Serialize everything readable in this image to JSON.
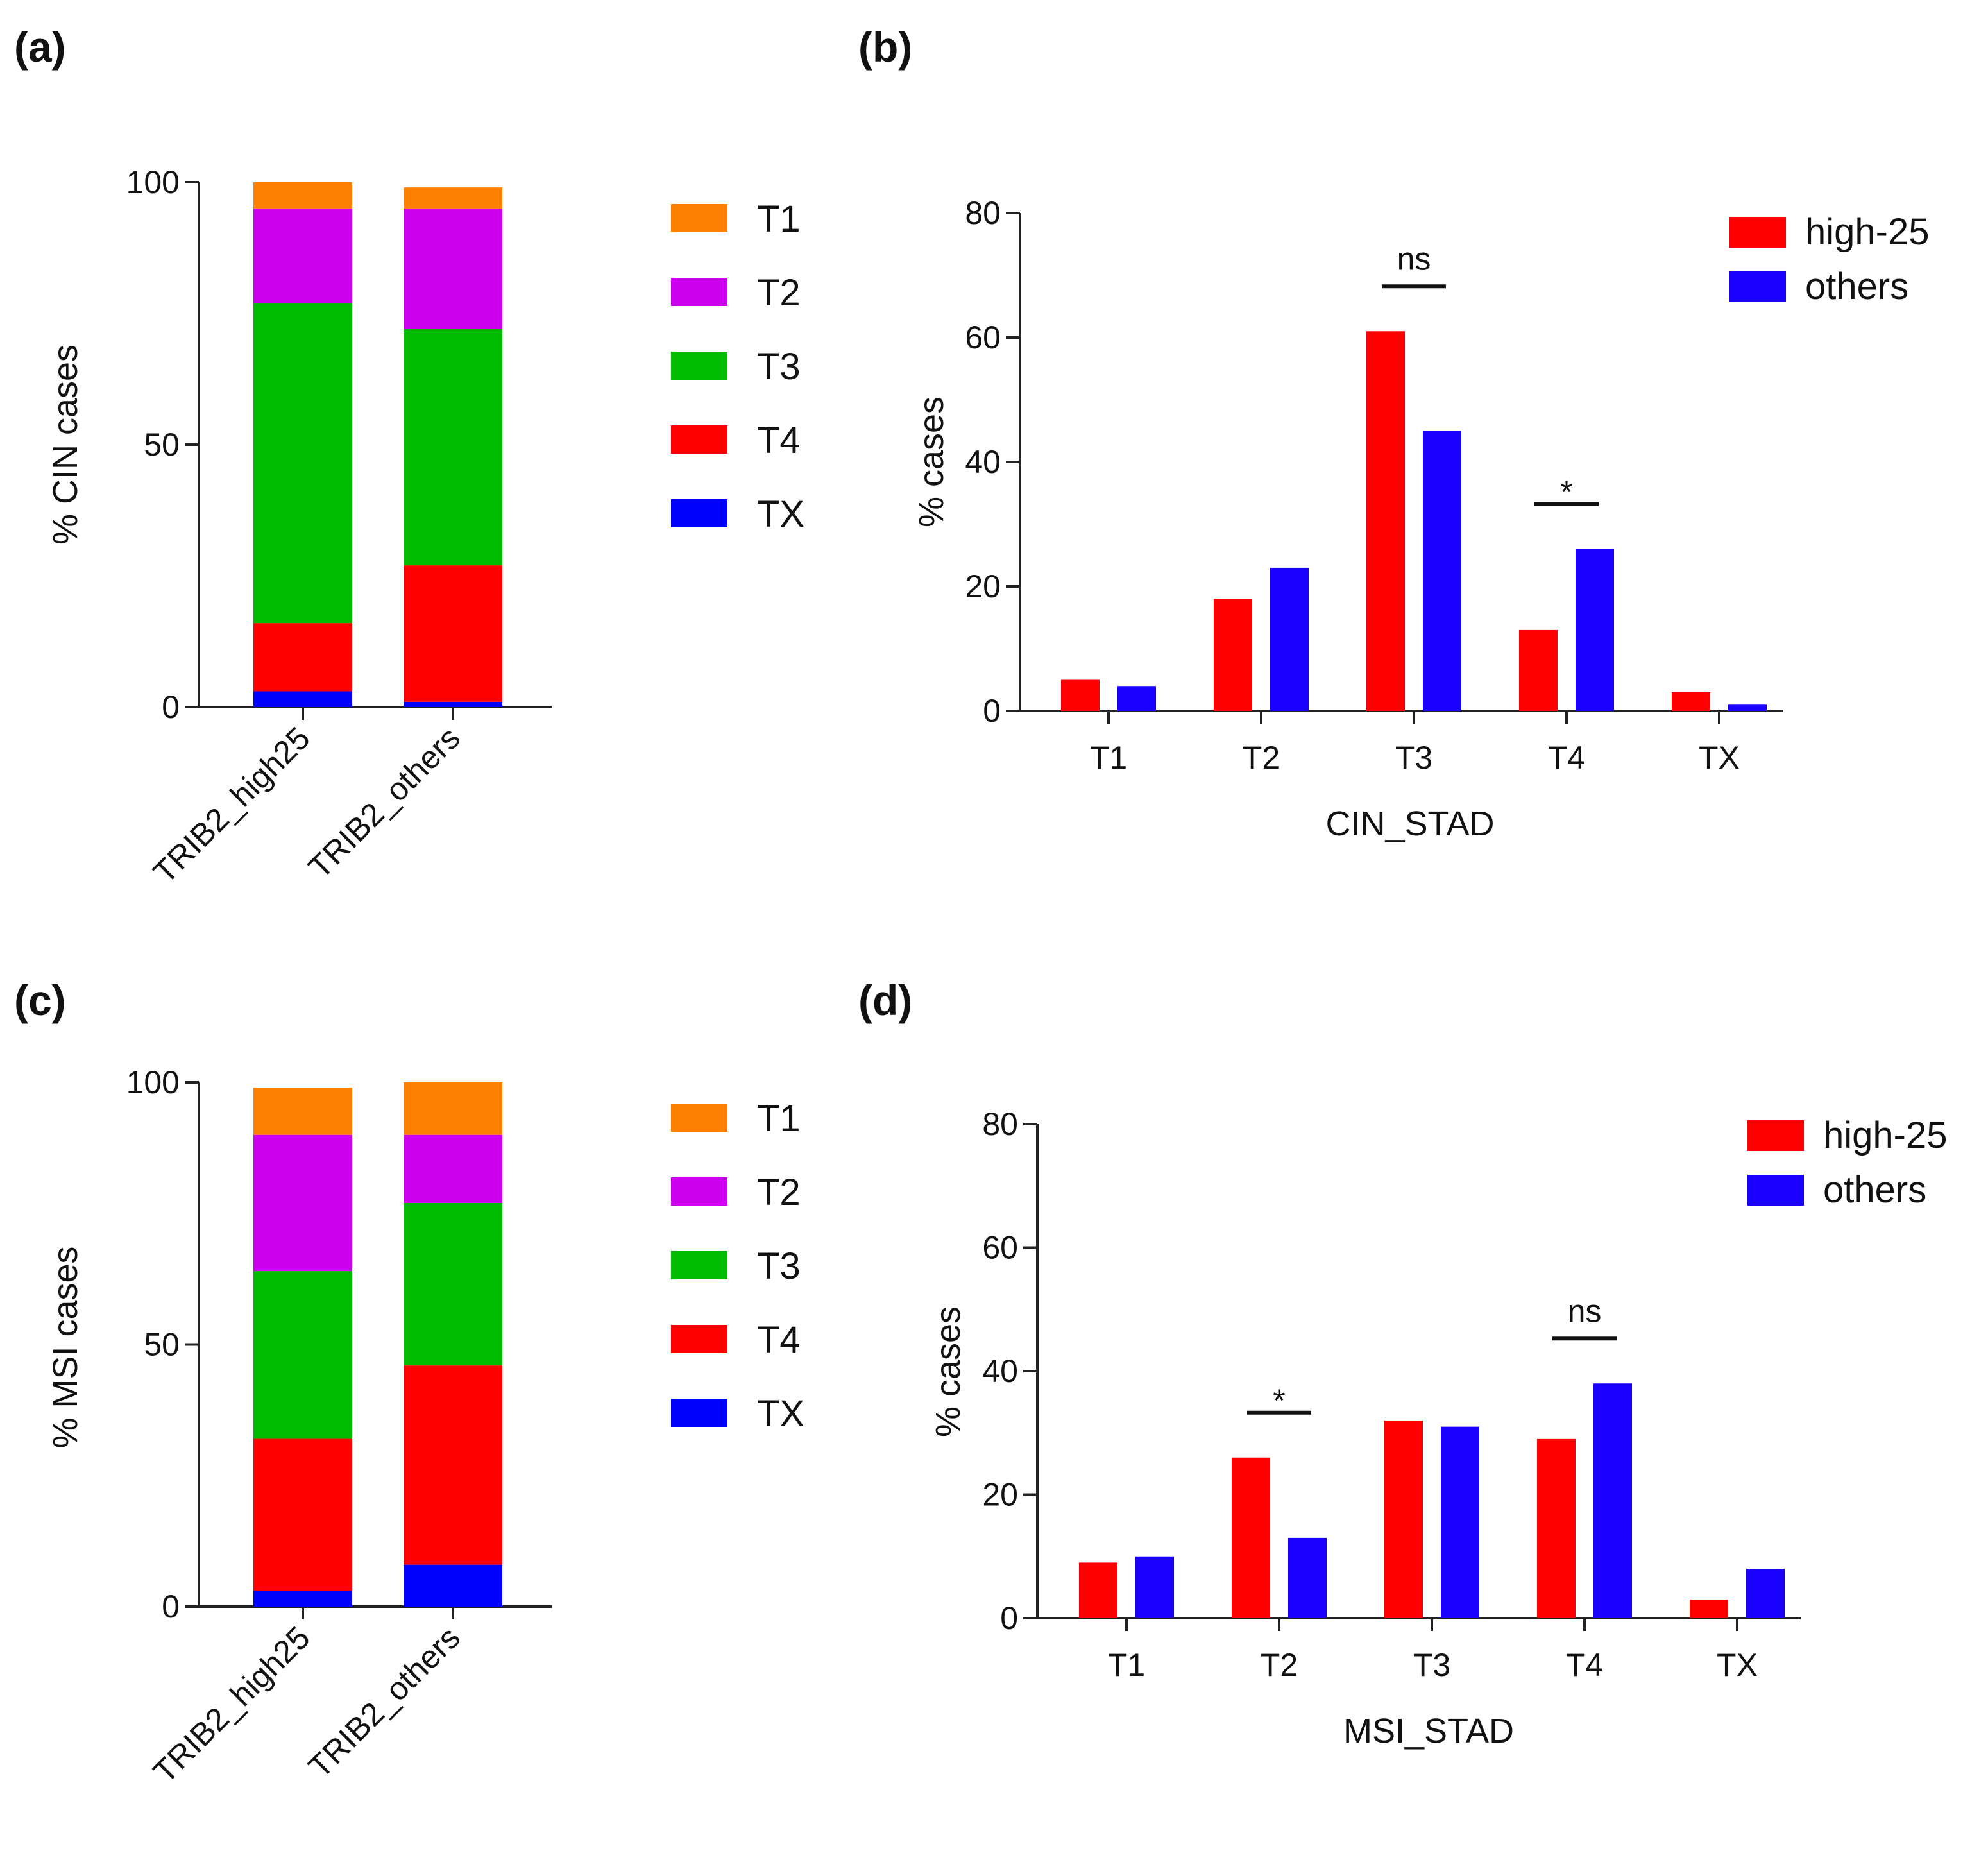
{
  "colors": {
    "T1": "#ff8000",
    "T2": "#cc00ee",
    "T3": "#00bb00",
    "T4": "#ff0000",
    "TX": "#0000ff",
    "high25": "#ff0000",
    "others": "#1a00ff"
  },
  "chart_data": [
    {
      "id": "a",
      "panel_label": "(a)",
      "type": "bar",
      "stacked": true,
      "ylabel": "% CIN cases",
      "ylim": [
        0,
        100
      ],
      "yticks": [
        "0",
        "50",
        "100"
      ],
      "categories": [
        "TRIB2_high25",
        "TRIB2_others"
      ],
      "series": [
        {
          "name": "TX",
          "values": [
            3,
            1
          ]
        },
        {
          "name": "T4",
          "values": [
            13,
            26
          ]
        },
        {
          "name": "T3",
          "values": [
            61,
            45
          ]
        },
        {
          "name": "T2",
          "values": [
            18,
            23
          ]
        },
        {
          "name": "T1",
          "values": [
            5,
            4
          ]
        }
      ],
      "legend": [
        "T1",
        "T2",
        "T3",
        "T4",
        "TX"
      ]
    },
    {
      "id": "b",
      "panel_label": "(b)",
      "type": "bar",
      "grouped": true,
      "xlabel": "CIN_STAD",
      "ylabel": "% cases",
      "ylim": [
        0,
        80
      ],
      "yticks": [
        "0",
        "20",
        "40",
        "60",
        "80"
      ],
      "categories": [
        "T1",
        "T2",
        "T3",
        "T4",
        "TX"
      ],
      "series": [
        {
          "name": "high-25",
          "values": [
            5,
            18,
            61,
            13,
            3
          ]
        },
        {
          "name": "others",
          "values": [
            4,
            23,
            45,
            26,
            1
          ]
        }
      ],
      "annotations": [
        {
          "category": "T3",
          "text": "ns"
        },
        {
          "category": "T4",
          "text": "*"
        }
      ]
    },
    {
      "id": "c",
      "panel_label": "(c)",
      "type": "bar",
      "stacked": true,
      "ylabel": "% MSI cases",
      "ylim": [
        0,
        100
      ],
      "yticks": [
        "0",
        "50",
        "100"
      ],
      "categories": [
        "TRIB2_high25",
        "TRIB2_others"
      ],
      "series": [
        {
          "name": "TX",
          "values": [
            3,
            8
          ]
        },
        {
          "name": "T4",
          "values": [
            29,
            38
          ]
        },
        {
          "name": "T3",
          "values": [
            32,
            31
          ]
        },
        {
          "name": "T2",
          "values": [
            26,
            13
          ]
        },
        {
          "name": "T1",
          "values": [
            9,
            10
          ]
        }
      ],
      "legend": [
        "T1",
        "T2",
        "T3",
        "T4",
        "TX"
      ]
    },
    {
      "id": "d",
      "panel_label": "(d)",
      "type": "bar",
      "grouped": true,
      "xlabel": "MSI_STAD",
      "ylabel": "% cases",
      "ylim": [
        0,
        80
      ],
      "yticks": [
        "0",
        "20",
        "40",
        "60",
        "80"
      ],
      "categories": [
        "T1",
        "T2",
        "T3",
        "T4",
        "TX"
      ],
      "series": [
        {
          "name": "high-25",
          "values": [
            9,
            26,
            32,
            29,
            3
          ]
        },
        {
          "name": "others",
          "values": [
            10,
            13,
            31,
            38,
            8
          ]
        }
      ],
      "annotations": [
        {
          "category": "T2",
          "text": "*"
        },
        {
          "category": "T4",
          "text": "ns"
        }
      ]
    }
  ]
}
